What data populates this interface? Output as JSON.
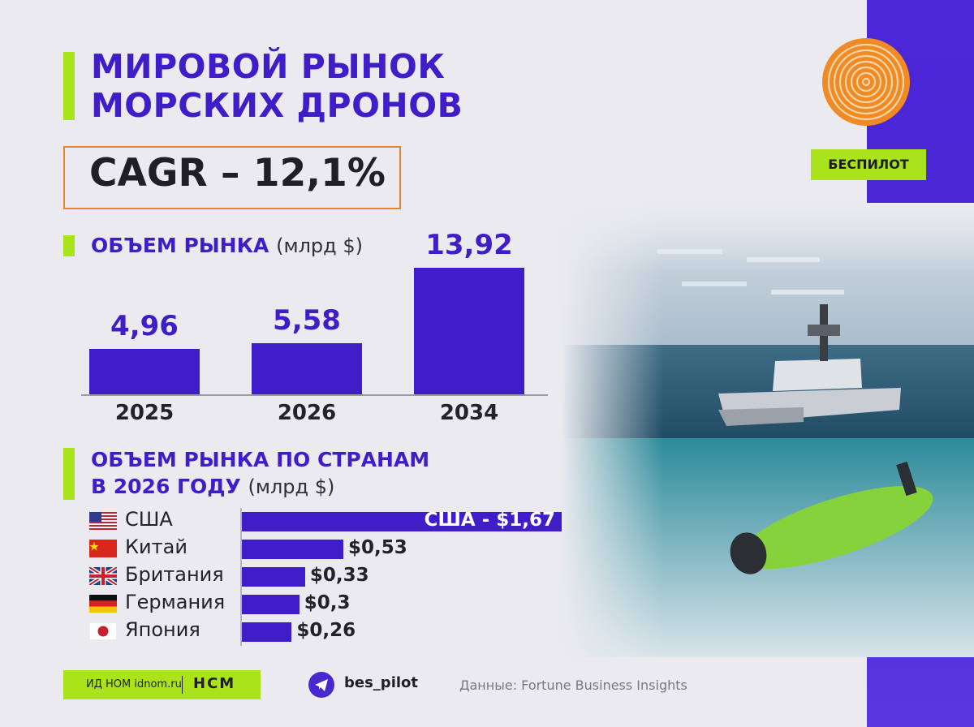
{
  "title_line1": "МИРОВОЙ РЫНОК",
  "title_line2": "МОРСКИХ ДРОНОВ",
  "cagr": "CAGR – 12,1%",
  "brand": "БЕСПИЛОТ",
  "market_section": {
    "title": "ОБЪЕМ РЫНКА",
    "unit": "(млрд $)"
  },
  "country_section": {
    "title_line1": "ОБЪЕМ РЫНКА ПО СТРАНАМ",
    "title_line2": "В 2026 ГОДУ",
    "unit": "(млрд $)"
  },
  "footer": {
    "pill_left": "ИД НОМ idnom.ru",
    "pill_right": "НСМ",
    "telegram": "bes_pilot",
    "source": "Данные: Fortune Business Insights"
  },
  "colors": {
    "bar": "#3f1ec9",
    "accent": "#a8e31c",
    "frame": "#e8852a",
    "band": "#4b27d8"
  },
  "chart_data": [
    {
      "type": "bar",
      "categories": [
        "2025",
        "2026",
        "2034"
      ],
      "values": [
        4.96,
        5.58,
        13.92
      ],
      "value_labels": [
        "4,96",
        "5,58",
        "13,92"
      ],
      "title": "ОБЪЕМ РЫНКА (млрд $)"
    },
    {
      "type": "bar",
      "orientation": "horizontal",
      "categories": [
        "США",
        "Китай",
        "Британия",
        "Германия",
        "Япония"
      ],
      "values": [
        1.67,
        0.53,
        0.33,
        0.3,
        0.26
      ],
      "value_labels": [
        "США - $1,67",
        "$0,53",
        "$0,33",
        "$0,3",
        "$0,26"
      ],
      "flags": [
        "us-flag-icon",
        "china-flag-icon",
        "uk-flag-icon",
        "germany-flag-icon",
        "japan-flag-icon"
      ],
      "title": "ОБЪЕМ РЫНКА ПО СТРАНАМ В 2026 ГОДУ (млрд $)"
    }
  ]
}
